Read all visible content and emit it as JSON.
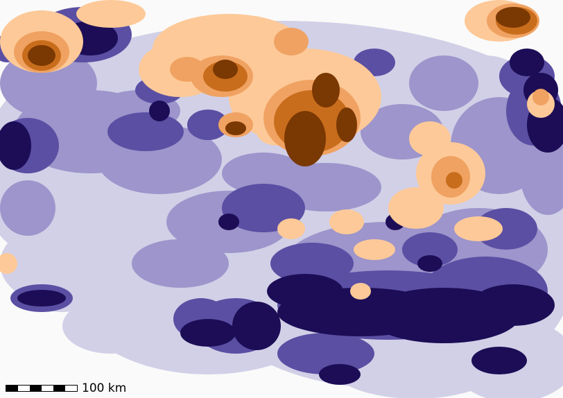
{
  "map": {
    "type": "choropleth-raster",
    "background_color": "#fafafa",
    "palette": {
      "lowest": "#2c1567",
      "very_low": "#1c0d56",
      "low": "#5a4fa3",
      "medium_low": "#9d95cb",
      "neutral": "#d1d0e7",
      "medium_high": "#fdc998",
      "high": "#f0a262",
      "very_high": "#c86d1c",
      "highest": "#7a3802"
    },
    "scale_bar": {
      "label": "100 km",
      "segment_colors": [
        "#000000",
        "#ffffff",
        "#000000",
        "#ffffff",
        "#000000",
        "#ffffff"
      ]
    }
  }
}
